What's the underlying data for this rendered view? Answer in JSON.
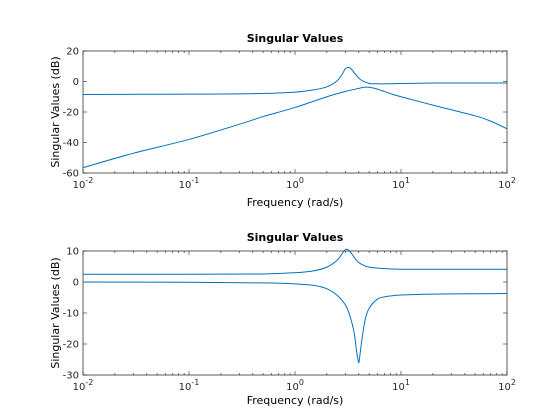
{
  "chart_data": [
    {
      "type": "line",
      "title": "Singular Values",
      "xlabel": "Frequency (rad/s)",
      "ylabel": "Singular Values (dB)",
      "xscale": "log",
      "xlim": [
        0.01,
        100
      ],
      "ylim": [
        -60,
        20
      ],
      "xticks": [
        0.01,
        0.1,
        1,
        10,
        100
      ],
      "xtick_labels": [
        {
          "base": "10",
          "exp": "-2"
        },
        {
          "base": "10",
          "exp": "-1"
        },
        {
          "base": "10",
          "exp": "0"
        },
        {
          "base": "10",
          "exp": "1"
        },
        {
          "base": "10",
          "exp": "2"
        }
      ],
      "yticks": [
        -60,
        -40,
        -20,
        0,
        20
      ],
      "ytick_labels": [
        "-60",
        "-40",
        "-20",
        "0",
        "20"
      ],
      "grid": false,
      "line_color": "#0072BD",
      "series": [
        {
          "x": [
            0.01,
            0.03,
            0.1,
            0.3,
            0.7,
            1,
            1.5,
            2,
            2.5,
            2.8,
            3,
            3.3,
            3.7,
            4.2,
            5,
            6,
            8,
            10,
            20,
            50,
            100
          ],
          "y": [
            -8.5,
            -8.4,
            -8.3,
            -8.1,
            -7.5,
            -7,
            -5.5,
            -3.5,
            0.5,
            5,
            8.5,
            9,
            5,
            1,
            -1.2,
            -1.5,
            -1.5,
            -1.3,
            -1,
            -1,
            -1
          ]
        },
        {
          "x": [
            0.01,
            0.03,
            0.1,
            0.3,
            0.5,
            1,
            2,
            3,
            4,
            4.5,
            5,
            6,
            8,
            10,
            20,
            50,
            70,
            100
          ],
          "y": [
            -56.5,
            -47,
            -38,
            -28,
            -23,
            -17,
            -10,
            -6.5,
            -4.5,
            -3.8,
            -3.8,
            -5,
            -8,
            -10,
            -15.5,
            -22.5,
            -26,
            -31
          ]
        }
      ]
    },
    {
      "type": "line",
      "title": "Singular Values",
      "xlabel": "Frequency (rad/s)",
      "ylabel": "Singular Values (dB)",
      "xscale": "log",
      "xlim": [
        0.01,
        100
      ],
      "ylim": [
        -30,
        10
      ],
      "xticks": [
        0.01,
        0.1,
        1,
        10,
        100
      ],
      "xtick_labels": [
        {
          "base": "10",
          "exp": "-2"
        },
        {
          "base": "10",
          "exp": "-1"
        },
        {
          "base": "10",
          "exp": "0"
        },
        {
          "base": "10",
          "exp": "1"
        },
        {
          "base": "10",
          "exp": "2"
        }
      ],
      "yticks": [
        -30,
        -20,
        -10,
        0,
        10
      ],
      "ytick_labels": [
        "-30",
        "-20",
        "-10",
        "0",
        "10"
      ],
      "grid": false,
      "line_color": "#0072BD",
      "series": [
        {
          "x": [
            0.01,
            0.1,
            0.5,
            1,
            1.5,
            2,
            2.5,
            2.8,
            3,
            3.2,
            3.5,
            3.8,
            4.2,
            5,
            7,
            10,
            20,
            50,
            100
          ],
          "y": [
            2.5,
            2.5,
            2.6,
            3,
            3.6,
            4.8,
            7,
            9.3,
            10.5,
            10.3,
            8.7,
            7,
            5.8,
            4.8,
            4.3,
            4.1,
            4.1,
            4.1,
            4.1
          ]
        },
        {
          "x": [
            0.01,
            0.1,
            0.5,
            1,
            1.5,
            2,
            2.5,
            3,
            3.3,
            3.6,
            3.8,
            3.9,
            4,
            4.1,
            4.3,
            4.6,
            5,
            6,
            7,
            8,
            10,
            20,
            50,
            100
          ],
          "y": [
            0,
            -0.1,
            -0.3,
            -0.6,
            -1.1,
            -2.2,
            -4.3,
            -7.5,
            -11,
            -16,
            -22,
            -24.5,
            -26,
            -23.5,
            -18,
            -12,
            -8.5,
            -5.5,
            -4.8,
            -4.5,
            -4.2,
            -3.9,
            -3.8,
            -3.7
          ]
        }
      ]
    }
  ]
}
